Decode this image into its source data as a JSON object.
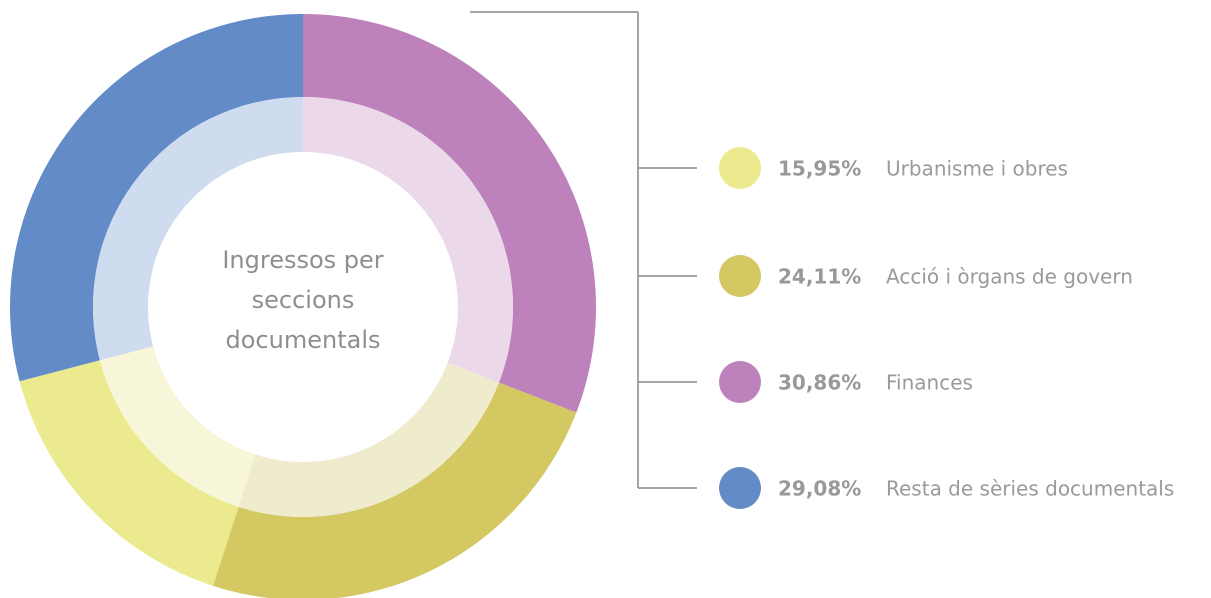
{
  "chart_data": {
    "type": "donut",
    "title": "Ingressos per seccions documentals",
    "categories": [
      "Urbanisme i obres",
      "Acció i òrgans de govern",
      "Finances",
      "Resta de sèries documentals"
    ],
    "values": [
      15.95,
      24.11,
      30.86,
      29.08
    ],
    "value_labels": [
      "15,95%",
      "24,11%",
      "30,86%",
      "29,08%"
    ],
    "colors": [
      "#ecea8e",
      "#d4c862",
      "#bd82bb",
      "#628bc8"
    ],
    "inner_colors": [
      "#f7f6d9",
      "#efebcd",
      "#ebd8e8",
      "#cfdbef"
    ]
  }
}
